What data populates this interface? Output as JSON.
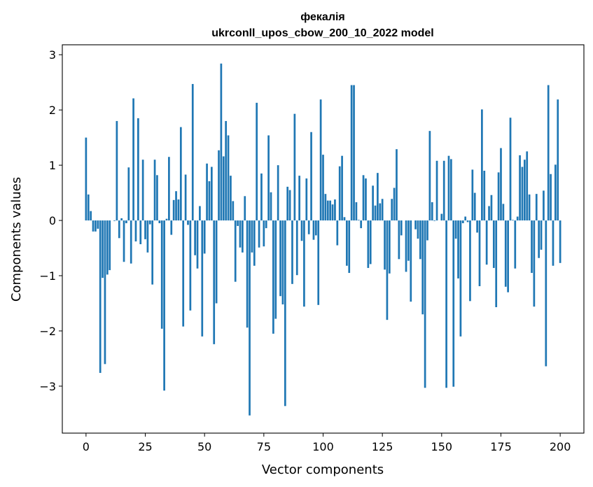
{
  "chart_data": {
    "type": "bar",
    "title": "фекалія",
    "subtitle": "ukrconll_upos_cbow_200_10_2022 model",
    "xlabel": "Vector components",
    "ylabel": "Components values",
    "xlim": [
      -10,
      210
    ],
    "ylim": [
      -3.85,
      3.18
    ],
    "xticks": [
      0,
      25,
      50,
      75,
      100,
      125,
      150,
      175,
      200
    ],
    "yticks": [
      -3,
      -2,
      -1,
      0,
      1,
      2,
      3
    ],
    "xtick_labels": [
      "0",
      "25",
      "50",
      "75",
      "100",
      "125",
      "150",
      "175",
      "200"
    ],
    "ytick_labels": [
      "−3",
      "−2",
      "−1",
      "0",
      "1",
      "2",
      "3"
    ],
    "grid": false,
    "color": "#1f77b4",
    "values": [
      1.5,
      0.47,
      0.17,
      -0.2,
      -0.2,
      -0.15,
      -2.76,
      -1.04,
      -2.6,
      -0.98,
      -0.9,
      0.0,
      -0.01,
      1.8,
      -0.32,
      0.04,
      -0.75,
      -0.05,
      0.96,
      -0.78,
      2.21,
      -0.38,
      1.85,
      -0.43,
      1.1,
      -0.34,
      -0.58,
      -0.07,
      -1.16,
      1.1,
      0.82,
      -0.05,
      -1.96,
      -3.08,
      0.03,
      1.15,
      -0.26,
      0.37,
      0.53,
      0.38,
      1.69,
      -1.92,
      0.83,
      -0.08,
      -1.63,
      2.47,
      -0.63,
      -0.87,
      0.26,
      -2.1,
      -0.6,
      1.03,
      0.71,
      0.97,
      -2.24,
      -1.5,
      1.27,
      2.84,
      1.16,
      1.8,
      1.54,
      0.81,
      0.35,
      -1.11,
      -0.1,
      -0.49,
      -0.58,
      0.44,
      -1.94,
      -3.53,
      -0.58,
      -0.82,
      2.13,
      -0.49,
      0.85,
      -0.47,
      -0.14,
      1.54,
      0.51,
      -2.05,
      -1.78,
      1.0,
      -1.37,
      -1.52,
      -3.36,
      0.61,
      0.55,
      -1.15,
      1.93,
      -0.99,
      0.81,
      -0.37,
      -1.56,
      0.76,
      -0.25,
      1.6,
      -0.35,
      -0.27,
      -1.53,
      2.19,
      1.19,
      0.48,
      0.36,
      0.36,
      0.29,
      0.38,
      -0.45,
      0.98,
      1.17,
      0.06,
      -0.82,
      -0.95,
      2.45,
      2.45,
      0.33,
      0.01,
      -0.14,
      0.82,
      0.76,
      -0.86,
      -0.79,
      0.63,
      0.27,
      0.86,
      0.31,
      0.39,
      -0.89,
      -1.8,
      -0.96,
      0.39,
      0.59,
      1.29,
      -0.7,
      -0.27,
      0.0,
      -0.93,
      -0.73,
      -1.47,
      0.0,
      -0.16,
      -0.33,
      -0.7,
      -1.7,
      -3.03,
      -0.36,
      1.62,
      0.33,
      -0.01,
      1.08,
      0.0,
      0.12,
      1.08,
      -3.03,
      1.17,
      1.11,
      -3.01,
      -0.33,
      -1.05,
      -2.1,
      -0.05,
      0.07,
      -0.03,
      -1.46,
      0.92,
      0.5,
      -0.22,
      -1.19,
      2.01,
      0.9,
      -0.8,
      0.26,
      0.46,
      -0.86,
      -1.57,
      0.87,
      1.31,
      0.3,
      -1.2,
      -1.3,
      1.86,
      0.01,
      -0.87,
      0.07,
      1.18,
      0.97,
      1.1,
      1.25,
      0.47,
      -0.95,
      -1.56,
      0.48,
      -0.68,
      -0.53,
      0.54,
      -2.64,
      2.45,
      0.84,
      -0.82,
      1.01,
      2.19,
      -0.77
    ]
  }
}
